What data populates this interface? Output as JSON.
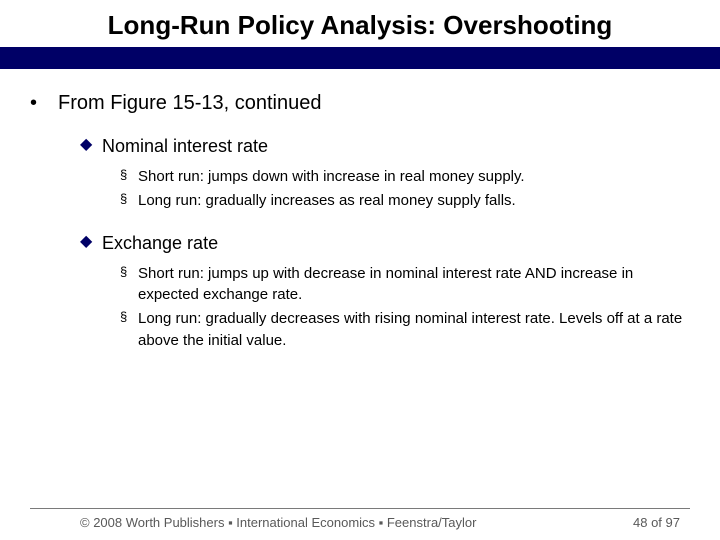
{
  "title": "Long-Run Policy Analysis: Overshooting",
  "colors": {
    "title_bar": "#000066",
    "level2_bullet": "#000066",
    "footer_text": "#595959",
    "footer_line": "#7a7a7a"
  },
  "bullets": {
    "level1": "•",
    "level2": "◆",
    "level3": "§"
  },
  "content": {
    "intro": "From Figure 15-13, continued",
    "sections": [
      {
        "heading": "Nominal interest rate",
        "items": [
          "Short run: jumps down with increase in real money supply.",
          "Long run: gradually increases as real money supply falls."
        ]
      },
      {
        "heading": "Exchange rate",
        "items": [
          "Short run: jumps up with decrease in nominal interest rate AND increase in expected exchange rate.",
          "Long run: gradually decreases with rising nominal interest rate. Levels off at a rate above the initial value."
        ]
      }
    ]
  },
  "footer": {
    "copyright": "© 2008 Worth Publishers ▪ International Economics ▪ Feenstra/Taylor",
    "page": "48 of 97"
  }
}
